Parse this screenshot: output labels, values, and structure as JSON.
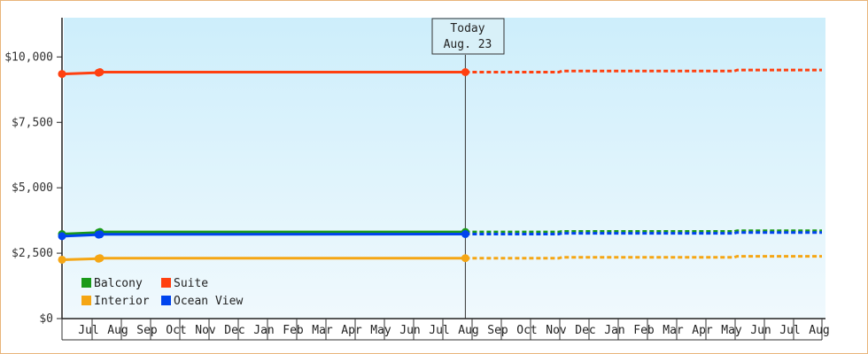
{
  "chart_data": {
    "type": "line",
    "y_axis": {
      "ticks": [
        0,
        2500,
        5000,
        7500,
        10000
      ],
      "tick_labels": [
        "$0",
        "$2,500",
        "$5,000",
        "$7,500",
        "$10,000"
      ],
      "ylim": [
        0,
        11500
      ]
    },
    "months": [
      "Jul",
      "Aug",
      "Sep",
      "Oct",
      "Nov",
      "Dec",
      "Jan",
      "Feb",
      "Mar",
      "Apr",
      "May",
      "Jun",
      "Jul",
      "Aug",
      "Sep",
      "Oct",
      "Nov",
      "Dec",
      "Jan",
      "Feb",
      "Mar",
      "Apr",
      "May",
      "Jun",
      "Jul",
      "Aug"
    ],
    "today_marker": {
      "line1": "Today",
      "line2": "Aug. 23"
    },
    "legend_placement": "bottom-left",
    "colors": {
      "plot_bg_top": "#cdeefb",
      "plot_bg_bottom": "#f0f9fd",
      "frame_border": "#e8b57a"
    },
    "series": [
      {
        "name": "Suite",
        "color": "#ff4010",
        "actual": [
          [
            0,
            9350
          ],
          [
            1.25,
            9400
          ],
          [
            1.3,
            9420
          ],
          [
            13.8,
            9420
          ]
        ],
        "forecast": [
          [
            13.8,
            9420
          ],
          [
            17.0,
            9420
          ],
          [
            17.1,
            9460
          ],
          [
            23.0,
            9460
          ],
          [
            23.1,
            9500
          ],
          [
            26.0,
            9500
          ]
        ]
      },
      {
        "name": "Balcony",
        "color": "#1a9a1a",
        "actual": [
          [
            0,
            3230
          ],
          [
            1.25,
            3290
          ],
          [
            1.3,
            3310
          ],
          [
            13.8,
            3310
          ]
        ],
        "forecast": [
          [
            13.8,
            3310
          ],
          [
            17.0,
            3310
          ],
          [
            17.1,
            3330
          ],
          [
            23.0,
            3330
          ],
          [
            23.1,
            3360
          ],
          [
            26.0,
            3360
          ]
        ]
      },
      {
        "name": "Ocean View",
        "color": "#0044ee",
        "actual": [
          [
            0,
            3150
          ],
          [
            1.25,
            3210
          ],
          [
            1.3,
            3220
          ],
          [
            13.8,
            3230
          ]
        ],
        "forecast": [
          [
            13.8,
            3230
          ],
          [
            17.0,
            3230
          ],
          [
            17.1,
            3260
          ],
          [
            23.0,
            3260
          ],
          [
            23.1,
            3290
          ],
          [
            26.0,
            3290
          ]
        ]
      },
      {
        "name": "Interior",
        "color": "#f5a614",
        "actual": [
          [
            0,
            2250
          ],
          [
            1.25,
            2290
          ],
          [
            1.3,
            2310
          ],
          [
            13.8,
            2310
          ]
        ],
        "forecast": [
          [
            13.8,
            2310
          ],
          [
            17.0,
            2310
          ],
          [
            17.1,
            2340
          ],
          [
            23.0,
            2340
          ],
          [
            23.1,
            2380
          ],
          [
            26.0,
            2380
          ]
        ]
      }
    ],
    "legend": [
      {
        "name": "Balcony",
        "color": "#1a9a1a"
      },
      {
        "name": "Suite",
        "color": "#ff4010"
      },
      {
        "name": "Interior",
        "color": "#f5a614"
      },
      {
        "name": "Ocean View",
        "color": "#0044ee"
      }
    ],
    "markers": [
      0,
      1.25,
      1.3,
      13.8
    ]
  }
}
